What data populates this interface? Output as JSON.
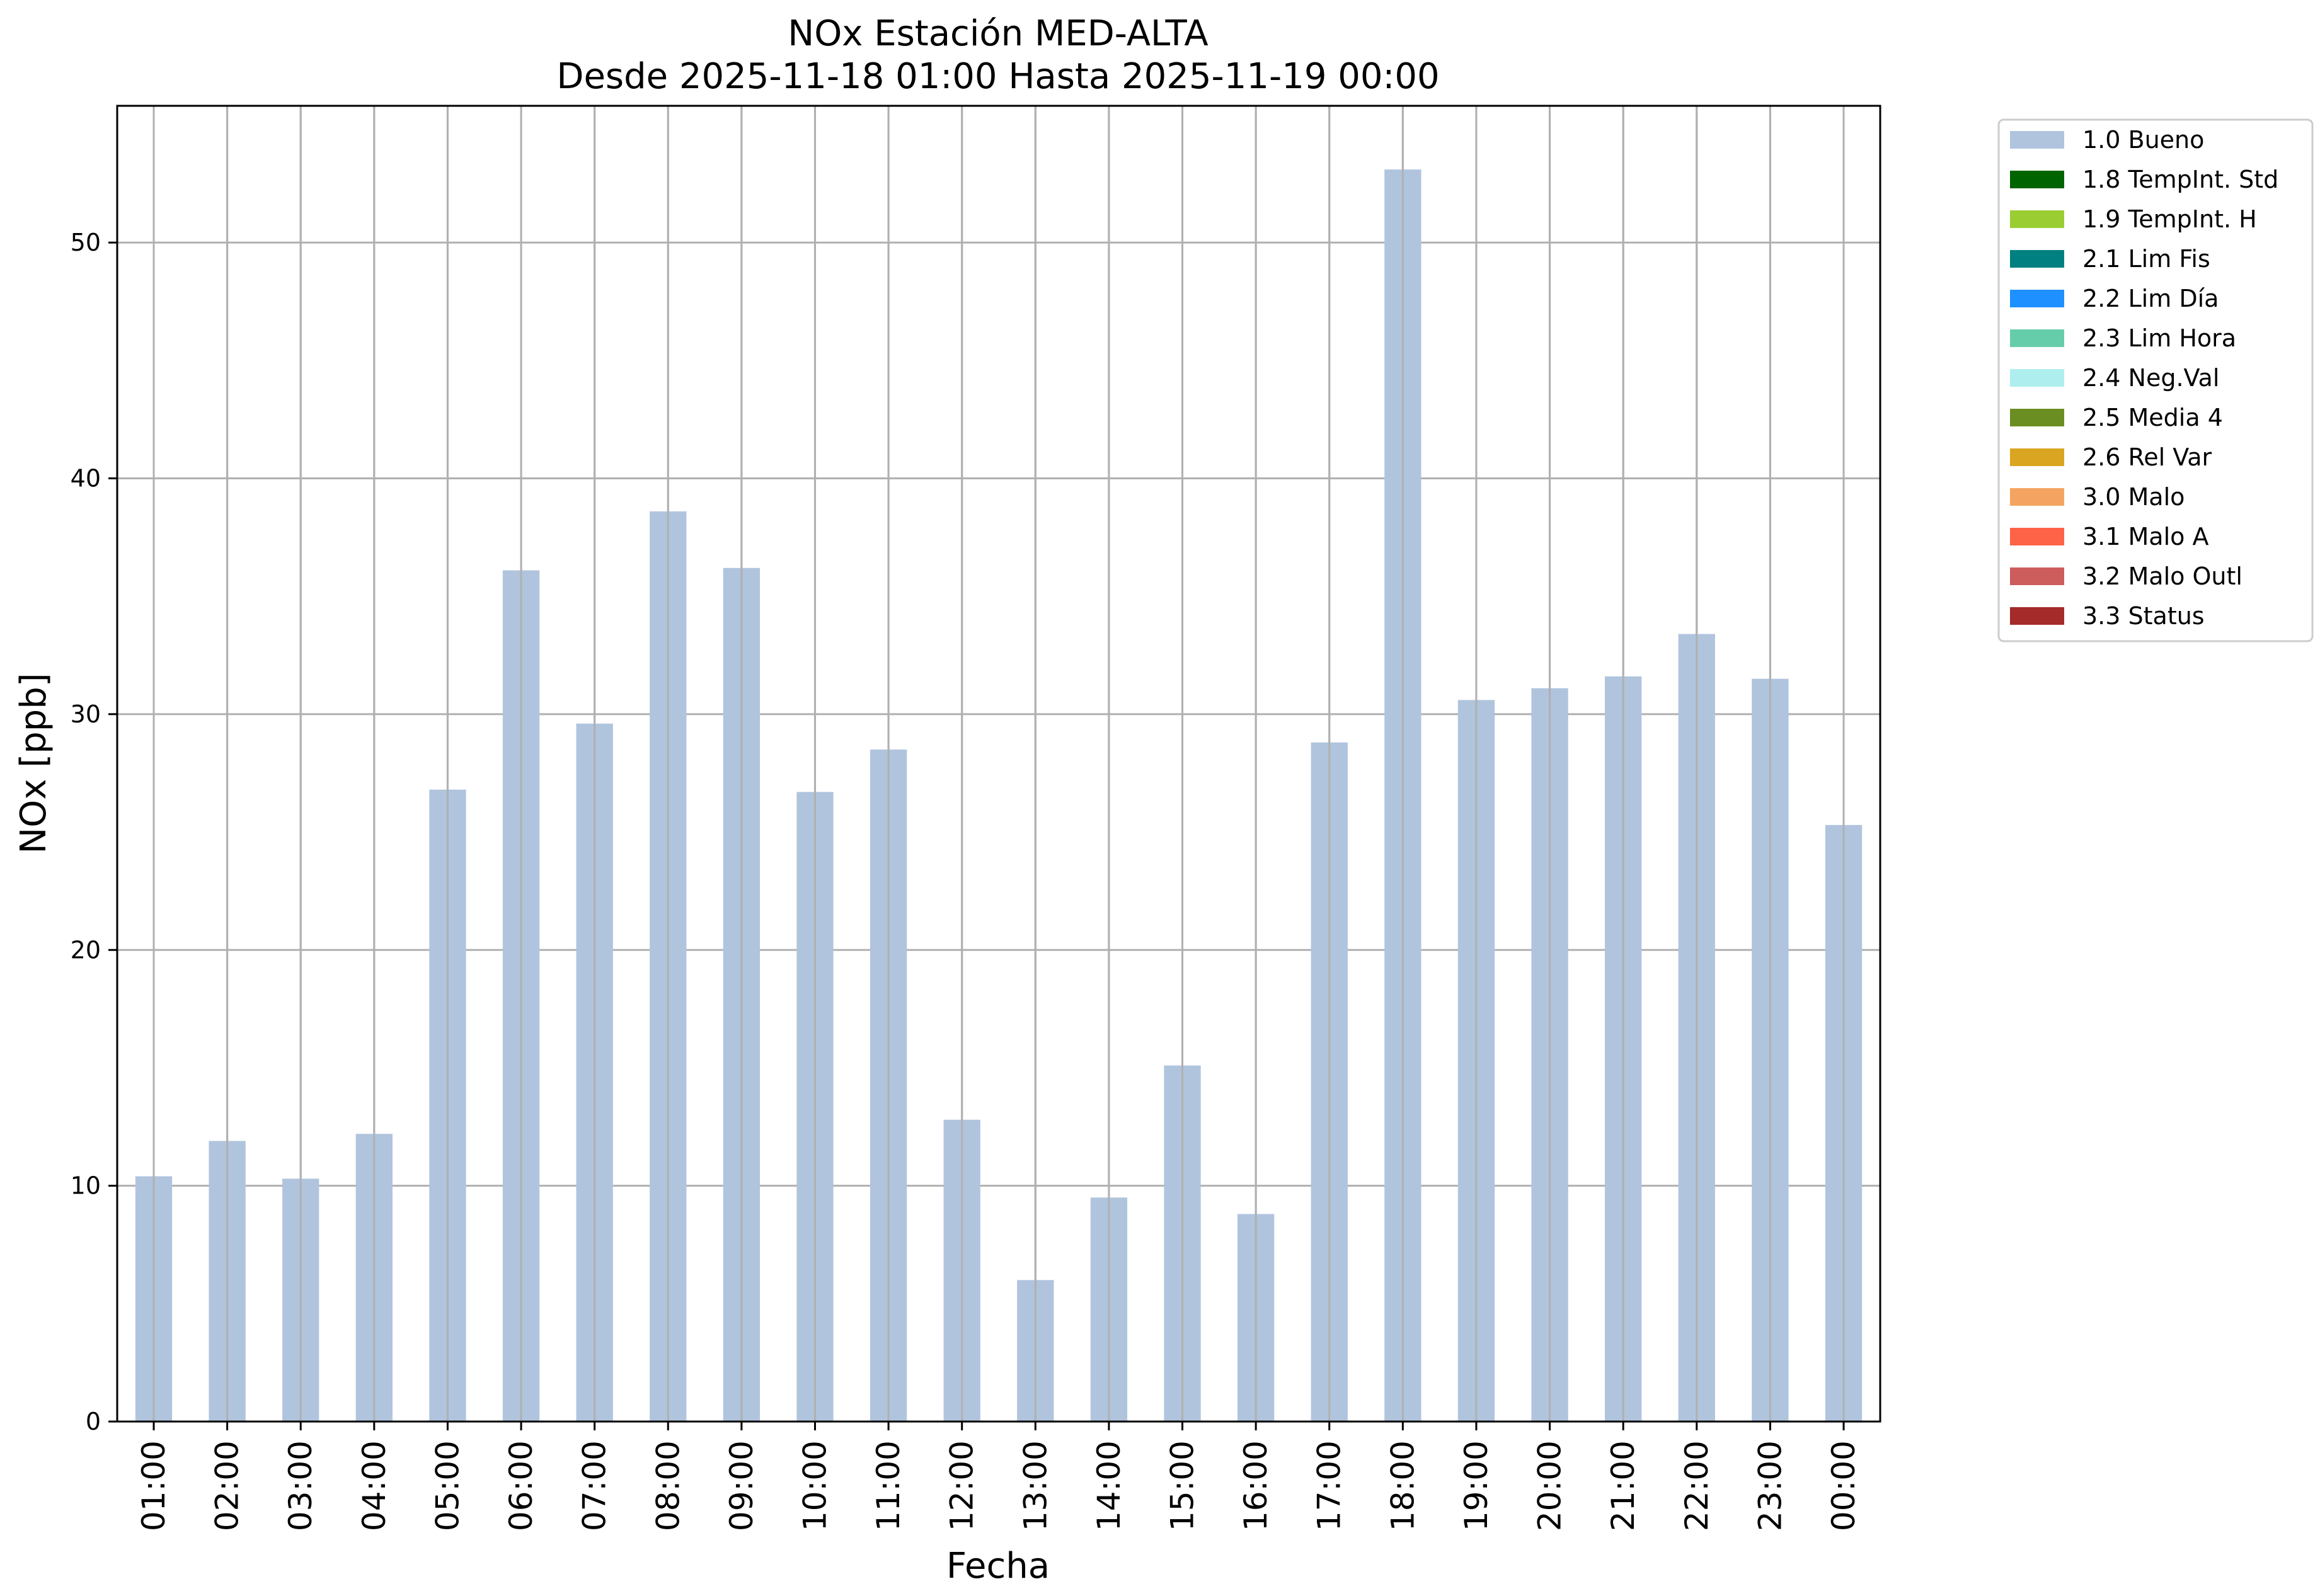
{
  "chart_data": {
    "type": "bar",
    "title": "NOx Estación MED-ALTA",
    "subtitle": "Desde 2025-11-18 01:00 Hasta 2025-11-19 00:00",
    "xlabel": "Fecha",
    "ylabel": "NOx [ppb]",
    "ylim": [
      0,
      55.8
    ],
    "yticks": [
      0,
      10,
      20,
      30,
      40,
      50
    ],
    "grid": true,
    "legend_position": "outside-upper-right",
    "categories": [
      "01:00",
      "02:00",
      "03:00",
      "04:00",
      "05:00",
      "06:00",
      "07:00",
      "08:00",
      "09:00",
      "10:00",
      "11:00",
      "12:00",
      "13:00",
      "14:00",
      "15:00",
      "16:00",
      "17:00",
      "18:00",
      "19:00",
      "20:00",
      "21:00",
      "22:00",
      "23:00",
      "00:00"
    ],
    "series": [
      {
        "name": "1.0 Bueno",
        "color": "#b0c4de",
        "values": [
          10.4,
          11.9,
          10.3,
          12.2,
          26.8,
          36.1,
          29.6,
          38.6,
          36.2,
          26.7,
          28.5,
          12.8,
          6.0,
          9.5,
          15.1,
          8.8,
          28.8,
          53.1,
          30.6,
          31.1,
          31.6,
          33.4,
          31.5,
          25.3
        ]
      }
    ],
    "legend": [
      {
        "label": "1.0 Bueno",
        "color": "#b0c4de"
      },
      {
        "label": "1.8 TempInt. Std",
        "color": "#006400"
      },
      {
        "label": "1.9 TempInt. H",
        "color": "#9acd32"
      },
      {
        "label": "2.1 Lim Fis",
        "color": "#008080"
      },
      {
        "label": "2.2 Lim Día",
        "color": "#1e90ff"
      },
      {
        "label": "2.3 Lim Hora",
        "color": "#66cdaa"
      },
      {
        "label": "2.4 Neg.Val",
        "color": "#afeeee"
      },
      {
        "label": "2.5 Media 4",
        "color": "#6b8e23"
      },
      {
        "label": "2.6 Rel Var",
        "color": "#daa520"
      },
      {
        "label": "3.0 Malo",
        "color": "#f4a460"
      },
      {
        "label": "3.1 Malo A",
        "color": "#ff6347"
      },
      {
        "label": "3.2 Malo Outl",
        "color": "#cd5c5c"
      },
      {
        "label": "3.3 Status",
        "color": "#a52a2a"
      }
    ]
  }
}
